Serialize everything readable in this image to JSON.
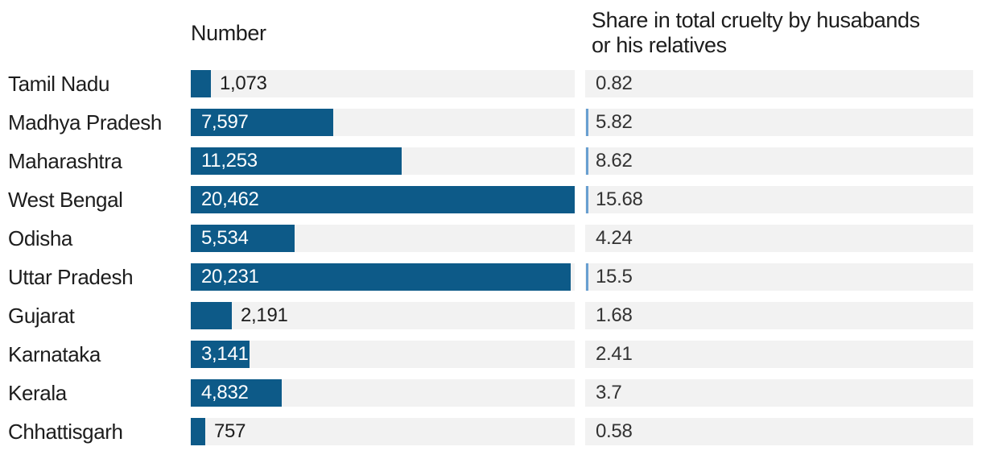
{
  "chart_data": {
    "type": "bar",
    "orientation": "horizontal",
    "columns": {
      "number_header": "Number",
      "share_header_line1": "Share in total cruelty by husabands",
      "share_header_line2": "or his relatives"
    },
    "categories": [
      "Tamil Nadu",
      "Madhya Pradesh",
      "Maharashtra",
      "West Bengal",
      "Odisha",
      "Uttar Pradesh",
      "Gujarat",
      "Karnataka",
      "Kerala",
      "Chhattisgarh"
    ],
    "series": [
      {
        "name": "Number",
        "values": [
          1073,
          7597,
          11253,
          20462,
          5534,
          20231,
          2191,
          3141,
          4832,
          757
        ]
      },
      {
        "name": "Share in total cruelty by husabands or his relatives",
        "values": [
          0.82,
          5.82,
          8.62,
          15.68,
          4.24,
          15.5,
          1.68,
          2.41,
          3.7,
          0.58
        ]
      }
    ],
    "rows": [
      {
        "state": "Tamil Nadu",
        "number": 1073,
        "number_label": "1,073",
        "share": 0.82,
        "share_label": "0.82"
      },
      {
        "state": "Madhya Pradesh",
        "number": 7597,
        "number_label": "7,597",
        "share": 5.82,
        "share_label": "5.82"
      },
      {
        "state": "Maharashtra",
        "number": 11253,
        "number_label": "11,253",
        "share": 8.62,
        "share_label": "8.62"
      },
      {
        "state": "West Bengal",
        "number": 20462,
        "number_label": "20,462",
        "share": 15.68,
        "share_label": "15.68"
      },
      {
        "state": "Odisha",
        "number": 5534,
        "number_label": "5,534",
        "share": 4.24,
        "share_label": "4.24"
      },
      {
        "state": "Uttar Pradesh",
        "number": 20231,
        "number_label": "20,231",
        "share": 15.5,
        "share_label": "15.5"
      },
      {
        "state": "Gujarat",
        "number": 2191,
        "number_label": "2,191",
        "share": 1.68,
        "share_label": "1.68"
      },
      {
        "state": "Karnataka",
        "number": 3141,
        "number_label": "3,141",
        "share": 2.41,
        "share_label": "2.41"
      },
      {
        "state": "Kerala",
        "number": 4832,
        "number_label": "4,832",
        "share": 3.7,
        "share_label": "3.7"
      },
      {
        "state": "Chhattisgarh",
        "number": 757,
        "number_label": "757",
        "share": 0.58,
        "share_label": "0.58"
      }
    ],
    "colors": {
      "bar": "#0d5a88",
      "share_marker": "#689fd1",
      "track": "#f2f2f2",
      "text": "#1d1d1d",
      "value_on_bar": "#ffffff"
    },
    "number_axis_max": 20462,
    "grid": false,
    "legend": false
  }
}
